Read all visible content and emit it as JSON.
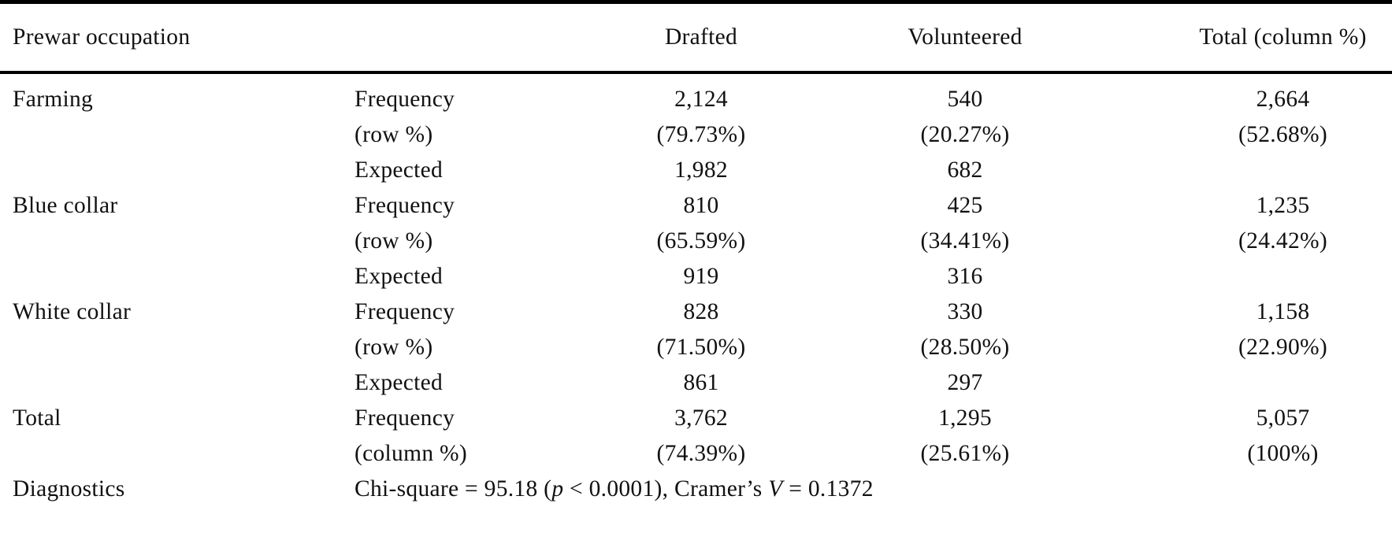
{
  "table": {
    "header": {
      "occupation": "Prewar occupation",
      "drafted": "Drafted",
      "volunteered": "Volunteered",
      "total": "Total (column %)"
    },
    "groups": [
      {
        "occupation": "Farming",
        "lines": [
          {
            "label": "Frequency",
            "drafted": "2,124",
            "volunteered": "540",
            "total": "2,664"
          },
          {
            "label": "(row %)",
            "drafted": "(79.73%)",
            "volunteered": "(20.27%)",
            "total": "(52.68%)"
          },
          {
            "label": "Expected",
            "drafted": "1,982",
            "volunteered": "682",
            "total": ""
          }
        ]
      },
      {
        "occupation": "Blue collar",
        "lines": [
          {
            "label": "Frequency",
            "drafted": "810",
            "volunteered": "425",
            "total": "1,235"
          },
          {
            "label": "(row %)",
            "drafted": "(65.59%)",
            "volunteered": "(34.41%)",
            "total": "(24.42%)"
          },
          {
            "label": "Expected",
            "drafted": "919",
            "volunteered": "316",
            "total": ""
          }
        ]
      },
      {
        "occupation": "White collar",
        "lines": [
          {
            "label": "Frequency",
            "drafted": "828",
            "volunteered": "330",
            "total": "1,158"
          },
          {
            "label": "(row %)",
            "drafted": "(71.50%)",
            "volunteered": "(28.50%)",
            "total": "(22.90%)"
          },
          {
            "label": "Expected",
            "drafted": "861",
            "volunteered": "297",
            "total": ""
          }
        ]
      },
      {
        "occupation": "Total",
        "lines": [
          {
            "label": "Frequency",
            "drafted": "3,762",
            "volunteered": "1,295",
            "total": "5,057"
          },
          {
            "label": "(column %)",
            "drafted": "(74.39%)",
            "volunteered": "(25.61%)",
            "total": "(100%)"
          }
        ]
      }
    ],
    "diagnostics": {
      "label": "Diagnostics",
      "chi_prefix": "Chi-square = 95.18 (",
      "p_symbol": "p",
      "mid": " < 0.0001), Cramer’s ",
      "v_symbol": "V",
      "suffix": " = 0.1372"
    }
  }
}
